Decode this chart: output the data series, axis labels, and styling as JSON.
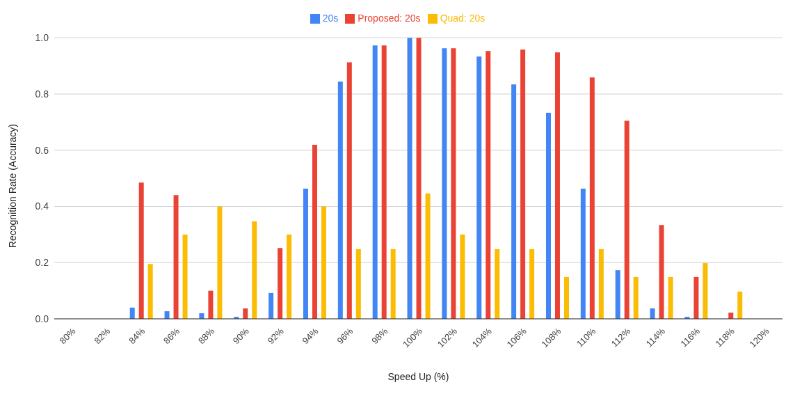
{
  "chart_data": {
    "type": "bar",
    "xlabel": "Speed Up (%)",
    "ylabel": "Recognition Rate (Accuracy)",
    "categories": [
      "80%",
      "82%",
      "84%",
      "86%",
      "88%",
      "90%",
      "92%",
      "94%",
      "96%",
      "98%",
      "100%",
      "102%",
      "104%",
      "106%",
      "108%",
      "110%",
      "112%",
      "114%",
      "116%",
      "118%",
      "120%"
    ],
    "series": [
      {
        "name": "20s",
        "color": "#4285f4",
        "values": [
          0,
          0,
          0.04,
          0.027,
          0.02,
          0.007,
          0.092,
          0.463,
          0.844,
          0.973,
          1.0,
          0.963,
          0.933,
          0.834,
          0.733,
          0.463,
          0.173,
          0.037,
          0.007,
          0,
          0
        ]
      },
      {
        "name": "Proposed: 20s",
        "color": "#ea4335",
        "values": [
          0,
          0,
          0.485,
          0.44,
          0.1,
          0.037,
          0.252,
          0.619,
          0.913,
          0.973,
          1.0,
          0.963,
          0.953,
          0.958,
          0.948,
          0.859,
          0.705,
          0.334,
          0.149,
          0.022,
          0
        ]
      },
      {
        "name": "Quad: 20s",
        "color": "#fbbc04",
        "values": [
          0,
          0,
          0.195,
          0.3,
          0.4,
          0.347,
          0.3,
          0.4,
          0.248,
          0.248,
          0.446,
          0.3,
          0.248,
          0.248,
          0.149,
          0.248,
          0.149,
          0.149,
          0.198,
          0.097,
          0
        ]
      }
    ],
    "ylim": [
      0,
      1
    ],
    "yticks": [
      {
        "value": 0,
        "label": "0.0"
      },
      0.2,
      0.4,
      0.6,
      0.8,
      {
        "value": 1,
        "label": "1.0"
      }
    ],
    "grid": "y",
    "legend": "top"
  }
}
